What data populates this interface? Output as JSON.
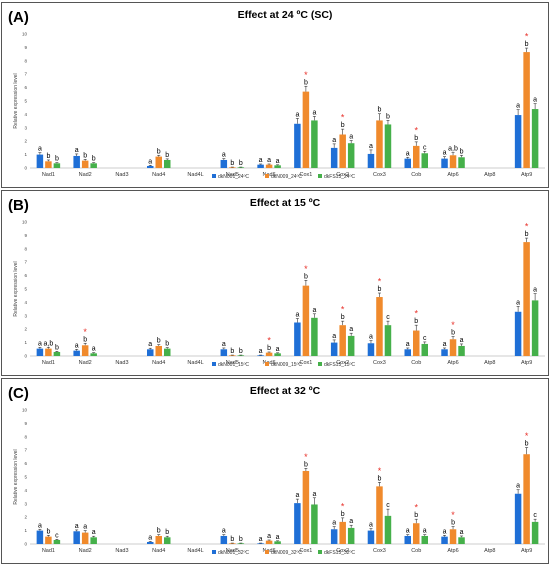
{
  "colors": {
    "s1": "#1f6fd6",
    "s2": "#f08a2c",
    "s3": "#45b04a",
    "star": "#e8312a"
  },
  "chart_data": [
    {
      "type": "bar",
      "panel_label": "(A)",
      "title": "Effect at 24 ºC (SC)",
      "ylabel": "Relative expression level",
      "ylim": [
        0,
        10
      ],
      "yticks": [
        "0",
        "1",
        "2",
        "3",
        "4",
        "5",
        "6",
        "7",
        "8",
        "9",
        "10"
      ],
      "categories": [
        "Nad1",
        "Nad2",
        "Nad3",
        "Nad4",
        "Nad4L",
        "Nad5",
        "Nad6",
        "Cox1",
        "Cox2",
        "Cox3",
        "Cob",
        "Atp6",
        "Atp8",
        "Atp9"
      ],
      "series": [
        {
          "name": "dkN001_24ºC",
          "values": [
            1.0,
            0.9,
            null,
            0.15,
            null,
            0.6,
            0.25,
            3.3,
            1.5,
            1.05,
            0.7,
            0.7,
            null,
            3.95
          ],
          "errors": [
            0.15,
            0.15,
            0,
            0.05,
            0,
            0.1,
            0.05,
            0.4,
            0.3,
            0.3,
            0.1,
            0.15,
            0,
            0.4
          ]
        },
        {
          "name": "dkN009_24ºC",
          "values": [
            0.5,
            0.55,
            null,
            0.85,
            null,
            0.05,
            0.25,
            5.7,
            2.5,
            3.55,
            1.65,
            0.95,
            null,
            8.65
          ],
          "errors": [
            0.1,
            0.1,
            0,
            0.1,
            0,
            0.02,
            0.05,
            0.4,
            0.4,
            0.5,
            0.3,
            0.2,
            0,
            0.3
          ]
        },
        {
          "name": "dkFS15_24ºC",
          "values": [
            0.35,
            0.35,
            null,
            0.6,
            null,
            0.05,
            0.2,
            3.55,
            1.85,
            3.25,
            1.1,
            0.8,
            null,
            4.4
          ],
          "errors": [
            0.05,
            0.05,
            0,
            0.08,
            0,
            0.02,
            0.04,
            0.3,
            0.2,
            0.3,
            0.15,
            0.15,
            0,
            0.4
          ]
        }
      ],
      "letters": [
        [
          "a",
          "b",
          "b"
        ],
        [
          "a",
          "b",
          "b"
        ],
        [
          "",
          "",
          ""
        ],
        [
          "a",
          "b",
          "b"
        ],
        [
          "",
          "",
          ""
        ],
        [
          "a",
          "b",
          "b"
        ],
        [
          "a",
          "a",
          "a"
        ],
        [
          "a",
          "b",
          "a"
        ],
        [
          "a",
          "b",
          "a"
        ],
        [
          "a",
          "b",
          "b"
        ],
        [
          "a",
          "b",
          "c"
        ],
        [
          "a",
          "a,b",
          "b"
        ],
        [
          "",
          "",
          ""
        ],
        [
          "a",
          "b",
          "a"
        ]
      ],
      "stars": [
        [
          "",
          "",
          ""
        ],
        [
          "",
          "",
          ""
        ],
        [
          "",
          "",
          ""
        ],
        [
          "",
          "",
          ""
        ],
        [
          "",
          "",
          ""
        ],
        [
          "",
          "",
          ""
        ],
        [
          "",
          "",
          ""
        ],
        [
          "",
          "*",
          ""
        ],
        [
          "",
          "*",
          ""
        ],
        [
          "",
          "",
          ""
        ],
        [
          "",
          "*",
          ""
        ],
        [
          "",
          "",
          ""
        ],
        [
          "",
          "",
          ""
        ],
        [
          "",
          "*",
          ""
        ]
      ]
    },
    {
      "type": "bar",
      "panel_label": "(B)",
      "title": "Effect at 15 ºC",
      "ylabel": "Relative expression level",
      "ylim": [
        0,
        10
      ],
      "yticks": [
        "0",
        "1",
        "2",
        "3",
        "4",
        "5",
        "6",
        "7",
        "8",
        "9",
        "10"
      ],
      "categories": [
        "Nad1",
        "Nad2",
        "Nad3",
        "Nad4",
        "Nad4L",
        "Nad5",
        "Nad6",
        "Cox1",
        "Cox2",
        "Cox3",
        "Cob",
        "Atp6",
        "Atp8",
        "Atp9"
      ],
      "series": [
        {
          "name": "dkN001_15ºC",
          "values": [
            0.55,
            0.4,
            null,
            0.5,
            null,
            0.5,
            0.05,
            2.5,
            1.0,
            0.95,
            0.5,
            0.5,
            null,
            3.3
          ],
          "errors": [
            0.1,
            0.1,
            0,
            0.08,
            0,
            0.1,
            0.02,
            0.3,
            0.2,
            0.2,
            0.1,
            0.1,
            0,
            0.4
          ]
        },
        {
          "name": "dkN009_15ºC",
          "values": [
            0.55,
            0.8,
            null,
            0.75,
            null,
            0.05,
            0.25,
            5.25,
            2.3,
            4.4,
            1.9,
            1.25,
            null,
            8.5
          ],
          "errors": [
            0.1,
            0.15,
            0,
            0.1,
            0,
            0.02,
            0.05,
            0.4,
            0.3,
            0.3,
            0.4,
            0.2,
            0,
            0.3
          ]
        },
        {
          "name": "dkFS15_15ºC",
          "values": [
            0.3,
            0.2,
            null,
            0.55,
            null,
            0.05,
            0.2,
            2.85,
            1.5,
            2.3,
            0.9,
            0.75,
            null,
            4.15
          ],
          "errors": [
            0.05,
            0.05,
            0,
            0.08,
            0,
            0.02,
            0.04,
            0.3,
            0.2,
            0.3,
            0.15,
            0.15,
            0,
            0.5
          ]
        }
      ],
      "letters": [
        [
          "a",
          "a,b",
          "b"
        ],
        [
          "a",
          "b",
          "a"
        ],
        [
          "",
          "",
          ""
        ],
        [
          "a",
          "b",
          "b"
        ],
        [
          "",
          "",
          ""
        ],
        [
          "a",
          "b",
          "b"
        ],
        [
          "a",
          "b",
          "a"
        ],
        [
          "a",
          "b",
          "a"
        ],
        [
          "a",
          "b",
          "a"
        ],
        [
          "a",
          "b",
          "c"
        ],
        [
          "a",
          "b",
          "c"
        ],
        [
          "a",
          "b",
          "a"
        ],
        [
          "",
          "",
          ""
        ],
        [
          "a",
          "b",
          "a"
        ]
      ],
      "stars": [
        [
          "",
          "",
          ""
        ],
        [
          "",
          "*",
          ""
        ],
        [
          "",
          "",
          ""
        ],
        [
          "",
          "",
          ""
        ],
        [
          "",
          "",
          ""
        ],
        [
          "",
          "",
          ""
        ],
        [
          "",
          "*",
          ""
        ],
        [
          "",
          "*",
          ""
        ],
        [
          "",
          "*",
          ""
        ],
        [
          "",
          "*",
          ""
        ],
        [
          "",
          "*",
          ""
        ],
        [
          "",
          "*",
          ""
        ],
        [
          "",
          "",
          ""
        ],
        [
          "",
          "*",
          ""
        ]
      ]
    },
    {
      "type": "bar",
      "panel_label": "(C)",
      "title": "Effect at 32 ºC",
      "ylabel": "Relative expression level",
      "ylim": [
        0,
        10
      ],
      "yticks": [
        "0",
        "1",
        "2",
        "3",
        "4",
        "5",
        "6",
        "7",
        "8",
        "9",
        "10"
      ],
      "categories": [
        "Nad1",
        "Nad2",
        "Nad3",
        "Nad4",
        "Nad4L",
        "Nad5",
        "Nad6",
        "Cox1",
        "Cox2",
        "Cox3",
        "Cob",
        "Atp6",
        "Atp8",
        "Atp9"
      ],
      "series": [
        {
          "name": "dkN001_32ºC",
          "values": [
            1.0,
            0.95,
            null,
            0.15,
            null,
            0.6,
            0.05,
            3.05,
            1.1,
            1.0,
            0.6,
            0.55,
            null,
            3.75
          ],
          "errors": [
            0.1,
            0.1,
            0,
            0.04,
            0,
            0.1,
            0.02,
            0.3,
            0.2,
            0.15,
            0.1,
            0.1,
            0,
            0.3
          ]
        },
        {
          "name": "dkN009_32ºC",
          "values": [
            0.55,
            0.85,
            null,
            0.6,
            null,
            0.05,
            0.25,
            5.45,
            1.65,
            4.3,
            1.55,
            1.1,
            null,
            6.7
          ],
          "errors": [
            0.1,
            0.15,
            0,
            0.1,
            0,
            0.02,
            0.05,
            0.2,
            0.3,
            0.3,
            0.3,
            0.2,
            0,
            0.5
          ]
        },
        {
          "name": "dkFS15_32ºC",
          "values": [
            0.3,
            0.5,
            null,
            0.5,
            null,
            0.05,
            0.2,
            2.95,
            1.2,
            2.1,
            0.6,
            0.5,
            null,
            1.65
          ],
          "errors": [
            0.05,
            0.08,
            0,
            0.08,
            0,
            0.02,
            0.04,
            0.5,
            0.2,
            0.5,
            0.1,
            0.1,
            0,
            0.2
          ]
        }
      ],
      "letters": [
        [
          "a",
          "b",
          "c"
        ],
        [
          "a",
          "a",
          "a"
        ],
        [
          "",
          "",
          ""
        ],
        [
          "a",
          "b",
          "b"
        ],
        [
          "",
          "",
          ""
        ],
        [
          "a",
          "b",
          "b"
        ],
        [
          "a",
          "a",
          "a"
        ],
        [
          "a",
          "b",
          "a"
        ],
        [
          "a",
          "b",
          "a"
        ],
        [
          "a",
          "b",
          "c"
        ],
        [
          "a",
          "b",
          "a"
        ],
        [
          "a",
          "b",
          "a"
        ],
        [
          "",
          "",
          ""
        ],
        [
          "a",
          "b",
          "c"
        ]
      ],
      "stars": [
        [
          "",
          "",
          ""
        ],
        [
          "",
          "",
          ""
        ],
        [
          "",
          "",
          ""
        ],
        [
          "",
          "",
          ""
        ],
        [
          "",
          "",
          ""
        ],
        [
          "",
          "",
          ""
        ],
        [
          "",
          "",
          ""
        ],
        [
          "",
          "*",
          ""
        ],
        [
          "",
          "*",
          ""
        ],
        [
          "",
          "*",
          ""
        ],
        [
          "",
          "*",
          ""
        ],
        [
          "",
          "*",
          ""
        ],
        [
          "",
          "",
          ""
        ],
        [
          "",
          "*",
          ""
        ]
      ]
    }
  ]
}
